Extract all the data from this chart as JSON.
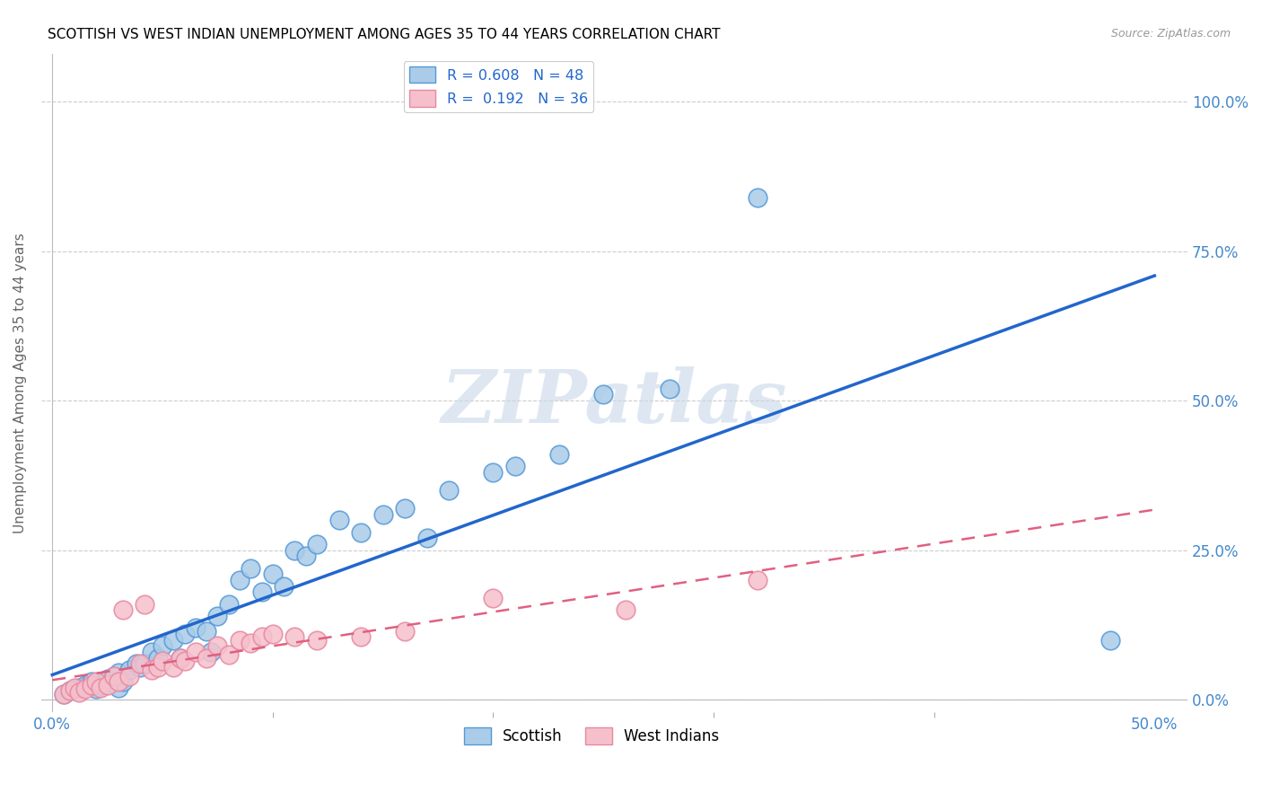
{
  "title": "SCOTTISH VS WEST INDIAN UNEMPLOYMENT AMONG AGES 35 TO 44 YEARS CORRELATION CHART",
  "source": "Source: ZipAtlas.com",
  "ylabel_label": "Unemployment Among Ages 35 to 44 years",
  "xlim": [
    0.0,
    0.52
  ],
  "ylim": [
    -0.02,
    1.08
  ],
  "plot_xlim": [
    0.0,
    0.5
  ],
  "plot_ylim": [
    0.0,
    1.0
  ],
  "scottish_color": "#aacce8",
  "scottish_edge_color": "#5599d8",
  "scottish_line_color": "#2266cc",
  "west_indian_color": "#f5c0cc",
  "west_indian_edge_color": "#e888a0",
  "west_indian_line_color": "#e06080",
  "R_scottish": 0.608,
  "N_scottish": 48,
  "R_west_indian": 0.192,
  "N_west_indian": 36,
  "scottish_x": [
    0.005,
    0.008,
    0.012,
    0.015,
    0.018,
    0.02,
    0.022,
    0.025,
    0.028,
    0.03,
    0.03,
    0.032,
    0.035,
    0.038,
    0.04,
    0.042,
    0.045,
    0.048,
    0.05,
    0.055,
    0.058,
    0.06,
    0.065,
    0.07,
    0.072,
    0.075,
    0.08,
    0.085,
    0.09,
    0.095,
    0.1,
    0.105,
    0.11,
    0.115,
    0.12,
    0.13,
    0.14,
    0.15,
    0.16,
    0.17,
    0.18,
    0.2,
    0.21,
    0.23,
    0.25,
    0.28,
    0.32,
    0.48
  ],
  "scottish_y": [
    0.01,
    0.015,
    0.02,
    0.025,
    0.03,
    0.018,
    0.025,
    0.035,
    0.04,
    0.02,
    0.045,
    0.03,
    0.05,
    0.06,
    0.055,
    0.06,
    0.08,
    0.07,
    0.09,
    0.1,
    0.07,
    0.11,
    0.12,
    0.115,
    0.08,
    0.14,
    0.16,
    0.2,
    0.22,
    0.18,
    0.21,
    0.19,
    0.25,
    0.24,
    0.26,
    0.3,
    0.28,
    0.31,
    0.32,
    0.27,
    0.35,
    0.38,
    0.39,
    0.41,
    0.51,
    0.52,
    0.84,
    0.1
  ],
  "west_indian_x": [
    0.005,
    0.008,
    0.01,
    0.012,
    0.015,
    0.018,
    0.02,
    0.022,
    0.025,
    0.028,
    0.03,
    0.032,
    0.035,
    0.04,
    0.042,
    0.045,
    0.048,
    0.05,
    0.055,
    0.058,
    0.06,
    0.065,
    0.07,
    0.075,
    0.08,
    0.085,
    0.09,
    0.095,
    0.1,
    0.11,
    0.12,
    0.14,
    0.16,
    0.2,
    0.26,
    0.32
  ],
  "west_indian_y": [
    0.01,
    0.015,
    0.02,
    0.012,
    0.018,
    0.025,
    0.03,
    0.02,
    0.025,
    0.04,
    0.03,
    0.15,
    0.04,
    0.06,
    0.16,
    0.05,
    0.055,
    0.065,
    0.055,
    0.07,
    0.065,
    0.08,
    0.07,
    0.09,
    0.075,
    0.1,
    0.095,
    0.105,
    0.11,
    0.105,
    0.1,
    0.105,
    0.115,
    0.17,
    0.15,
    0.2
  ],
  "background_color": "#ffffff",
  "grid_color": "#cccccc",
  "watermark_text": "ZIPatlas",
  "watermark_color": "#c8d8e8",
  "tick_color": "#4488cc",
  "label_color": "#666666"
}
